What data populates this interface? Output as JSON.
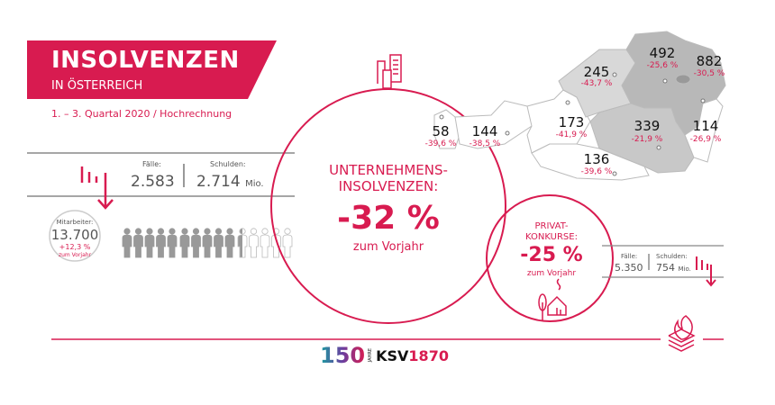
{
  "header": {
    "title": "INSOLVENZEN",
    "subtitle": "IN ÖSTERREICH",
    "period": "1. – 3. Quartal 2020 / Hochrechnung"
  },
  "companies": {
    "heading_line1": "UNTERNEHMENS-",
    "heading_line2": "INSOLVENZEN:",
    "change": "-32 %",
    "change_note": "zum Vorjahr",
    "cases_label": "Fälle:",
    "cases_value": "2.583",
    "debt_label": "Schulden:",
    "debt_value": "2.714",
    "debt_unit": "Mio.",
    "employees_label": "Mitarbeiter:",
    "employees_value": "13.700",
    "employees_change": "+12,3 %",
    "employees_change_note": "zum Vorjahr",
    "employees_filled_fraction": 0.7
  },
  "private": {
    "heading_line1": "PRIVAT-",
    "heading_line2": "KONKURSE:",
    "change": "-25 %",
    "change_note": "zum Vorjahr",
    "cases_label": "Fälle:",
    "cases_value": "5.350",
    "debt_label": "Schulden:",
    "debt_value": "754",
    "debt_unit": "Mio."
  },
  "regions": [
    {
      "value": "58",
      "change": "-39,6 %"
    },
    {
      "value": "144",
      "change": "-38,5 %"
    },
    {
      "value": "173",
      "change": "-41,9 %"
    },
    {
      "value": "245",
      "change": "-43,7 %"
    },
    {
      "value": "492",
      "change": "-25,6 %"
    },
    {
      "value": "882",
      "change": "-30,5 %"
    },
    {
      "value": "339",
      "change": "-21,9 %"
    },
    {
      "value": "114",
      "change": "-26,9 %"
    },
    {
      "value": "136",
      "change": "-39,6 %"
    }
  ],
  "logo": {
    "years": "150",
    "jahre": "JAHRE",
    "brand": "KSV",
    "brand_year": "1870"
  },
  "colors": {
    "accent": "#d81b50",
    "text": "#555555",
    "map_dark": "#b8b8b8",
    "map_mid": "#c8c8c8",
    "map_light": "#d8d8d8"
  }
}
